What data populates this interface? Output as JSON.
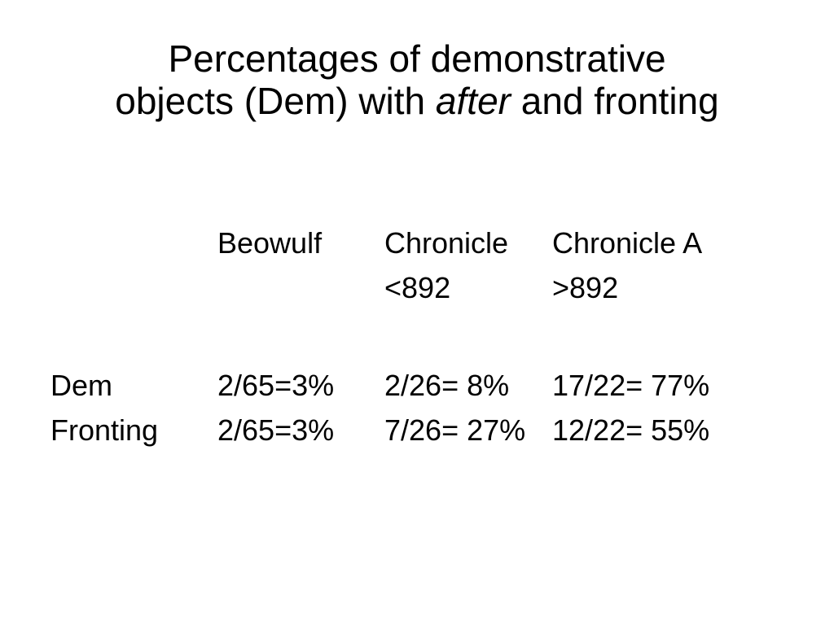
{
  "slide": {
    "background_color": "#ffffff",
    "text_color": "#000000"
  },
  "title": {
    "line1": "Percentages of demonstrative",
    "line2_pre": "objects (Dem) with ",
    "line2_italic": "after",
    "line2_post": " and fronting"
  },
  "table": {
    "col_headers": [
      "Beowulf",
      "Chronicle",
      "Chronicle A"
    ],
    "col_subheaders": [
      "",
      "<892",
      ">892"
    ],
    "rows": [
      {
        "label": "Dem",
        "values": [
          "2/65=3%",
          "2/26= 8%",
          "17/22= 77%"
        ]
      },
      {
        "label": "Fronting",
        "values": [
          "2/65=3%",
          "7/26= 27%",
          "12/22= 55%"
        ]
      }
    ]
  }
}
